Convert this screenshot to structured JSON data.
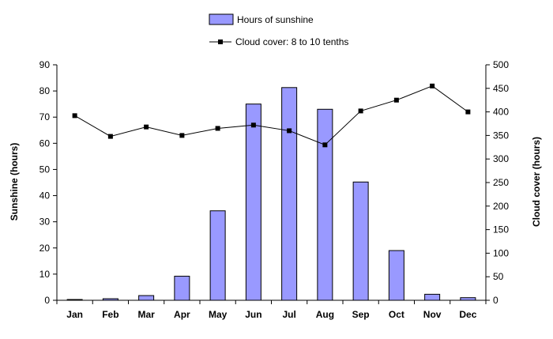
{
  "chart_data": {
    "type": "bar",
    "categories": [
      "Jan",
      "Feb",
      "Mar",
      "Apr",
      "May",
      "Jun",
      "Jul",
      "Aug",
      "Sep",
      "Oct",
      "Nov",
      "Dec"
    ],
    "series": [
      {
        "name": "Hours of sunshine",
        "type": "bar",
        "axis": "left",
        "color": "#9999ff",
        "values": [
          0.3,
          0.6,
          1.8,
          9.2,
          34.2,
          75,
          81.3,
          73,
          45.2,
          19,
          2.3,
          1
        ]
      },
      {
        "name": "Cloud cover: 8 to 10 tenths",
        "type": "line",
        "axis": "right",
        "color": "#000000",
        "values": [
          392,
          348,
          368,
          350,
          365,
          372,
          360,
          330,
          402,
          425,
          455,
          400
        ]
      }
    ],
    "y_left": {
      "label": "Sunshine (hours)",
      "min": 0,
      "max": 90,
      "step": 10,
      "ticks": [
        "0",
        "10",
        "20",
        "30",
        "40",
        "50",
        "60",
        "70",
        "80",
        "90"
      ]
    },
    "y_right": {
      "label": "Cloud cover (hours)",
      "min": 0,
      "max": 500,
      "step": 50,
      "ticks": [
        "0",
        "50",
        "100",
        "150",
        "200",
        "250",
        "300",
        "350",
        "400",
        "450",
        "500"
      ]
    },
    "legend_position": "top",
    "grid": false
  }
}
